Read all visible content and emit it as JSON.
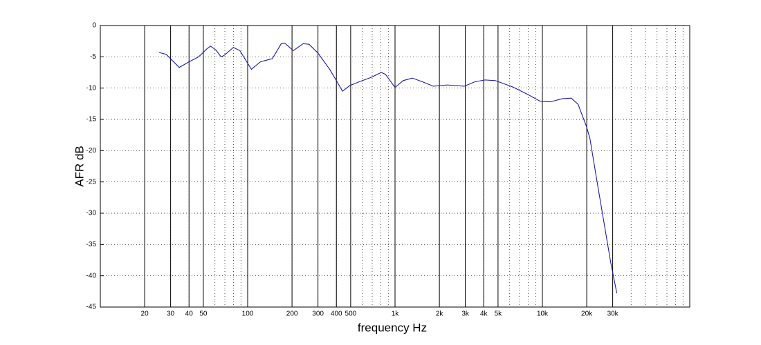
{
  "chart_data": {
    "type": "line",
    "x_label": "frequency  Hz",
    "y_label": "AFR dB",
    "xscale": "log",
    "xlim": [
      10,
      100000
    ],
    "ylim": [
      -45,
      0
    ],
    "grid": true,
    "minor_grid": true,
    "xticks": [
      20,
      30,
      40,
      50,
      100,
      200,
      300,
      400,
      500,
      {
        "value": 1000,
        "label": "1k"
      },
      {
        "value": 2000,
        "label": "2k"
      },
      {
        "value": 3000,
        "label": "3k"
      },
      {
        "value": 4000,
        "label": "4k"
      },
      {
        "value": 5000,
        "label": "5k"
      },
      {
        "value": 10000,
        "label": "10k"
      },
      {
        "value": 20000,
        "label": "20k"
      },
      {
        "value": 30000,
        "label": "30k"
      }
    ],
    "yticks": [
      0,
      -5,
      -10,
      -15,
      -20,
      -25,
      -30,
      -35,
      -40,
      -45
    ],
    "x": [
      25,
      28,
      34.3,
      40,
      46.5,
      53,
      56,
      60.8,
      66,
      69,
      80,
      88.4,
      106,
      122,
      147,
      169,
      178,
      204,
      238,
      261,
      300,
      360,
      400,
      440,
      493,
      570,
      686,
      807,
      861,
      1000,
      1136,
      1310,
      1540,
      1820,
      2260,
      2950,
      3470,
      4070,
      4790,
      6270,
      7790,
      9660,
      11350,
      13620,
      15690,
      17470,
      19880,
      21000,
      23400,
      26100,
      29100,
      32000
    ],
    "series": [
      {
        "color": "#1a1aa6",
        "values": [
          -4.3,
          -4.6,
          -6.7,
          -5.8,
          -5,
          -3.7,
          -3.3,
          -3.9,
          -5,
          -4.8,
          -3.5,
          -4,
          -7,
          -5.8,
          -5.3,
          -2.9,
          -2.8,
          -4,
          -2.9,
          -3,
          -4.4,
          -7,
          -8.8,
          -10.5,
          -9.6,
          -9.0,
          -8.3,
          -7.5,
          -7.8,
          -9.9,
          -8.8,
          -8.4,
          -9,
          -9.7,
          -9.5,
          -9.7,
          -9,
          -8.7,
          -8.8,
          -9.8,
          -10.9,
          -12.1,
          -12.2,
          -11.7,
          -11.6,
          -12.6,
          -16.1,
          -18,
          -24.7,
          -31.3,
          -37.9,
          -42.8
        ]
      }
    ]
  }
}
